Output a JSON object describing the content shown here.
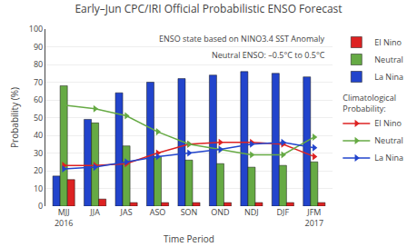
{
  "chart_data": {
    "type": "bar",
    "title": "Early–Jun CPC/IRI Official Probabilistic ENSO Forecast",
    "xlabel": "Time Period",
    "ylabel": "Probability (%)",
    "annotations": [
      "ENSO state based on NINO3.4 SST Anomaly",
      "Neutral ENSO: –0.5°C to 0.5°C"
    ],
    "legend_title": "Climatological\nProbability:",
    "categories": [
      "MJJ\n2016",
      "JJA",
      "JAS",
      "ASO",
      "SON",
      "OND",
      "NDJ",
      "DJF",
      "JFM\n2017"
    ],
    "series": [
      {
        "name": "La Nina",
        "type": "bar",
        "color": "#2244cc",
        "values": [
          17,
          49,
          64,
          70,
          72,
          74,
          76,
          75,
          73
        ]
      },
      {
        "name": "Neutral",
        "type": "bar",
        "color": "#66aa44",
        "values": [
          68,
          47,
          34,
          28,
          26,
          24,
          22,
          23,
          25
        ]
      },
      {
        "name": "El Nino",
        "type": "bar",
        "color": "#dd2222",
        "values": [
          15,
          4,
          2,
          2,
          2,
          2,
          2,
          2,
          2
        ]
      },
      {
        "name": "El Nino",
        "type": "line",
        "color": "#dd2222",
        "marker": "triangle-right",
        "values": [
          23,
          23,
          24,
          30,
          35,
          36,
          36,
          35,
          28
        ]
      },
      {
        "name": "Neutral",
        "type": "line",
        "color": "#66aa44",
        "marker": "triangle-right",
        "values": [
          57,
          55,
          51,
          42,
          35,
          32,
          29,
          29,
          39
        ]
      },
      {
        "name": "La Nina",
        "type": "line",
        "color": "#2244cc",
        "marker": "triangle-right",
        "values": [
          21,
          22,
          25,
          28,
          30,
          32,
          35,
          36,
          33
        ]
      }
    ],
    "ylim": [
      0,
      100
    ],
    "yticks": [
      0,
      10,
      20,
      30,
      40,
      50,
      60,
      70,
      80,
      90,
      100
    ],
    "grid": true,
    "legend": "right"
  }
}
